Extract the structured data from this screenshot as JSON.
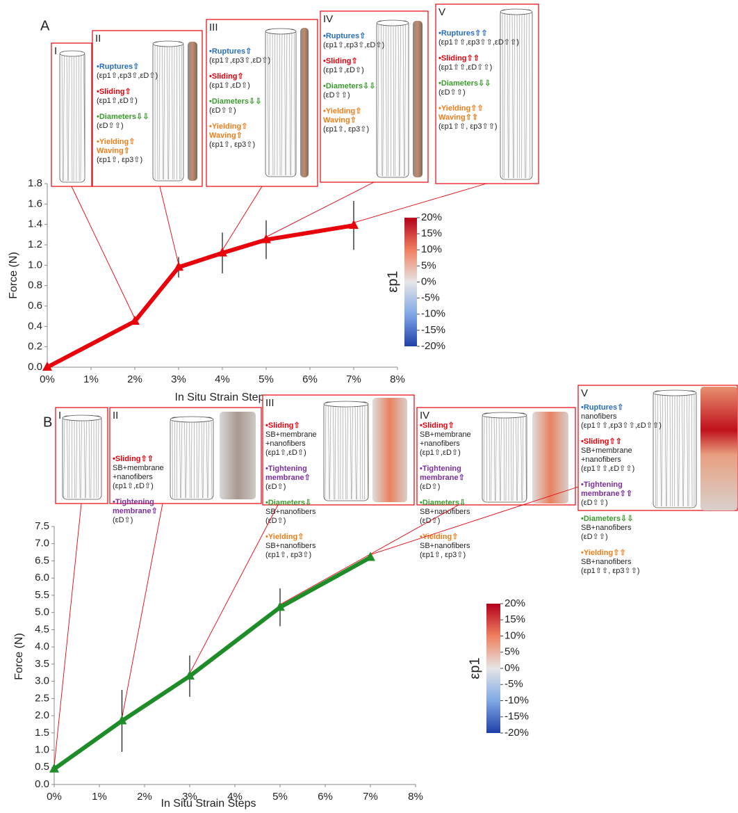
{
  "chart_data": [
    {
      "type": "line",
      "panel_label": "A",
      "xlabel": "In Situ Strain Steps",
      "ylabel": "Force (N)",
      "x": [
        0,
        2,
        3,
        4,
        5,
        7
      ],
      "values": [
        0,
        0.45,
        0.98,
        1.12,
        1.25,
        1.39
      ],
      "errors": [
        null,
        null,
        0.1,
        0.2,
        0.19,
        0.24
      ],
      "color": "#e8000b",
      "marker": "triangle",
      "xlim": [
        0,
        8
      ],
      "ylim": [
        0,
        1.8
      ],
      "xticks": [
        {
          "value": 0,
          "label": "0%"
        },
        {
          "value": 1,
          "label": "1%"
        },
        {
          "value": 2,
          "label": "2%"
        },
        {
          "value": 3,
          "label": "3%"
        },
        {
          "value": 4,
          "label": "4%"
        },
        {
          "value": 5,
          "label": "5%"
        },
        {
          "value": 6,
          "label": "6%"
        },
        {
          "value": 7,
          "label": "7%"
        },
        {
          "value": 8,
          "label": "8%"
        }
      ],
      "yticks": [
        {
          "value": 0,
          "label": "0.0"
        },
        0.2,
        0.4,
        0.6,
        0.8,
        {
          "value": 1,
          "label": "1.0"
        },
        1.2,
        1.4,
        1.6,
        1.8
      ],
      "colorbar": {
        "label": "εp1",
        "ticks": [
          {
            "value": 20,
            "label": "20%"
          },
          {
            "value": 15,
            "label": "15%"
          },
          {
            "value": 10,
            "label": "10%"
          },
          {
            "value": 5,
            "label": "5%"
          },
          {
            "value": 0,
            "label": "0%"
          },
          {
            "value": -5,
            "label": "-5%"
          },
          {
            "value": -10,
            "label": "-10%"
          },
          {
            "value": -15,
            "label": "-15%"
          },
          {
            "value": -20,
            "label": "-20%"
          }
        ]
      },
      "insets": [
        {
          "label": "I",
          "notes": []
        },
        {
          "label": "II",
          "notes": [
            {
              "color": "#2a6ebb",
              "heading": [
                "•Ruptures⇧"
              ],
              "detail": [
                "(εp1⇧,εp3⇧,εD⇧)"
              ]
            },
            {
              "color": "#e8000b",
              "heading": [
                "•Sliding⇧"
              ],
              "detail": [
                "(εp1⇧,εD⇧)"
              ]
            },
            {
              "color": "#3c9a2e",
              "heading": [
                "•Diameters⇩⇩"
              ],
              "detail": [
                "(εD⇧⇧)"
              ]
            },
            {
              "color": "#f07d1a",
              "heading": [
                "•Yielding⇧",
                "Waving⇧"
              ],
              "detail": [
                "(εp1⇧, εp3⇧)"
              ]
            }
          ]
        },
        {
          "label": "III",
          "notes": [
            {
              "color": "#2a6ebb",
              "heading": [
                "•Ruptures⇧"
              ],
              "detail": [
                "(εp1⇧,εp3⇧,εD⇧)"
              ]
            },
            {
              "color": "#e8000b",
              "heading": [
                "•Sliding⇧"
              ],
              "detail": [
                "(εp1⇧,εD⇧)"
              ]
            },
            {
              "color": "#3c9a2e",
              "heading": [
                "•Diameters⇩⇩"
              ],
              "detail": [
                "(εD⇧⇧)"
              ]
            },
            {
              "color": "#f07d1a",
              "heading": [
                "•Yielding⇧",
                "Waving⇧"
              ],
              "detail": [
                "(εp1⇧, εp3⇧)"
              ]
            }
          ]
        },
        {
          "label": "IV",
          "notes": [
            {
              "color": "#2a6ebb",
              "heading": [
                "•Ruptures⇧"
              ],
              "detail": [
                "(εp1⇧,εp3⇧,εD⇧)"
              ]
            },
            {
              "color": "#e8000b",
              "heading": [
                "•Sliding⇧"
              ],
              "detail": [
                "(εp1⇧,εD⇧)"
              ]
            },
            {
              "color": "#3c9a2e",
              "heading": [
                "•Diameters⇩⇩"
              ],
              "detail": [
                "(εD⇧⇧)"
              ]
            },
            {
              "color": "#f07d1a",
              "heading": [
                "•Yielding⇧",
                "Waving⇧"
              ],
              "detail": [
                "(εp1⇧, εp3⇧)"
              ]
            }
          ]
        },
        {
          "label": "V",
          "notes": [
            {
              "color": "#2a6ebb",
              "heading": [
                "•Ruptures⇧⇧"
              ],
              "detail": [
                "(εp1⇧⇧,εp3⇧⇧,εD⇧⇧)"
              ]
            },
            {
              "color": "#e8000b",
              "heading": [
                "•Sliding⇧⇧"
              ],
              "detail": [
                "(εp1⇧⇧,εD⇧⇧)"
              ]
            },
            {
              "color": "#3c9a2e",
              "heading": [
                "•Diameters⇩⇩"
              ],
              "detail": [
                "(εD⇧⇧)"
              ]
            },
            {
              "color": "#f07d1a",
              "heading": [
                "•Yielding⇧⇧",
                "Waving⇧⇧"
              ],
              "detail": [
                "(εp1⇧⇧, εp3⇧⇧)"
              ]
            }
          ]
        }
      ]
    },
    {
      "type": "line",
      "panel_label": "B",
      "xlabel": "In Situ Strain Steps",
      "ylabel": "Force (N)",
      "x": [
        0,
        1.5,
        3,
        5,
        7
      ],
      "values": [
        0.45,
        1.85,
        3.15,
        5.15,
        6.6
      ],
      "errors": [
        null,
        0.9,
        0.6,
        0.55,
        null
      ],
      "color": "#1e8c28",
      "marker": "triangle",
      "xlim": [
        0,
        8
      ],
      "ylim": [
        0,
        7.5
      ],
      "xticks": [
        {
          "value": 0,
          "label": "0%"
        },
        {
          "value": 1,
          "label": "1%"
        },
        {
          "value": 2,
          "label": "2%"
        },
        {
          "value": 3,
          "label": "3%"
        },
        {
          "value": 4,
          "label": "4%"
        },
        {
          "value": 5,
          "label": "5%"
        },
        {
          "value": 6,
          "label": "6%"
        },
        {
          "value": 7,
          "label": "7%"
        },
        {
          "value": 8,
          "label": "8%"
        }
      ],
      "yticks": [
        {
          "value": 0,
          "label": "0.0"
        },
        0.5,
        {
          "value": 1,
          "label": "1.0"
        },
        1.5,
        {
          "value": 2,
          "label": "2.0"
        },
        2.5,
        {
          "value": 3,
          "label": "3.0"
        },
        3.5,
        {
          "value": 4,
          "label": "4.0"
        },
        4.5,
        {
          "value": 5,
          "label": "5.0"
        },
        5.5,
        {
          "value": 6,
          "label": "6.0"
        },
        6.5,
        {
          "value": 7,
          "label": "7.0"
        },
        7.5
      ],
      "colorbar": {
        "label": "εp1",
        "ticks": [
          {
            "value": 20,
            "label": "20%"
          },
          {
            "value": 15,
            "label": "15%"
          },
          {
            "value": 10,
            "label": "10%"
          },
          {
            "value": 5,
            "label": "5%"
          },
          {
            "value": 0,
            "label": "0%"
          },
          {
            "value": -5,
            "label": "-5%"
          },
          {
            "value": -10,
            "label": "-10%"
          },
          {
            "value": -15,
            "label": "-15%"
          },
          {
            "value": -20,
            "label": "-20%"
          }
        ]
      },
      "insets": [
        {
          "label": "I",
          "notes": []
        },
        {
          "label": "II",
          "notes": [
            {
              "color": "#e8000b",
              "heading": [
                "•Sliding⇧⇧"
              ],
              "detail": [
                "SB+membrane",
                "+nanofibers",
                "(εp1⇧,εD⇧)"
              ]
            },
            {
              "color": "#7b2fa0",
              "heading": [
                "•Tightening",
                "membrane⇧"
              ],
              "detail": [
                "(εD⇧)"
              ]
            }
          ]
        },
        {
          "label": "III",
          "notes": [
            {
              "color": "#e8000b",
              "heading": [
                "•Sliding⇧"
              ],
              "detail": [
                "SB+membrane",
                "+nanofibers",
                "(εp1⇧,εD⇧)"
              ]
            },
            {
              "color": "#7b2fa0",
              "heading": [
                "•Tightening",
                "membrane⇧"
              ],
              "detail": [
                "(εD⇧)"
              ]
            },
            {
              "color": "#3c9a2e",
              "heading": [
                "•Diameters⇩"
              ],
              "detail": [
                "SB+nanofibers",
                "(εD⇧)"
              ]
            },
            {
              "color": "#f07d1a",
              "heading": [
                "•Yielding⇧"
              ],
              "detail": [
                "SB+nanofibers",
                "(εp1⇧, εp3⇧)"
              ]
            }
          ]
        },
        {
          "label": "IV",
          "notes": [
            {
              "color": "#e8000b",
              "heading": [
                "•Sliding⇧"
              ],
              "detail": [
                "SB+membrane",
                "+nanofibers",
                "(εp1⇧,εD⇧)"
              ]
            },
            {
              "color": "#7b2fa0",
              "heading": [
                "•Tightening",
                "membrane⇧"
              ],
              "detail": [
                "(εD⇧)"
              ]
            },
            {
              "color": "#3c9a2e",
              "heading": [
                "•Diameters⇩"
              ],
              "detail": [
                "SB+nanofibers",
                "(εD⇧)"
              ]
            },
            {
              "color": "#f07d1a",
              "heading": [
                "•Yielding⇧"
              ],
              "detail": [
                "SB+nanofibers",
                "(εp1⇧, εp3⇧)"
              ]
            }
          ]
        },
        {
          "label": "V",
          "notes": [
            {
              "color": "#2a6ebb",
              "heading": [
                "•Ruptures⇧"
              ],
              "detail": [
                "nanofibers",
                "(εp1⇧⇧,εp3⇧⇧,εD⇧⇧)"
              ]
            },
            {
              "color": "#e8000b",
              "heading": [
                "•Sliding⇧⇧"
              ],
              "detail": [
                "SB+membrane",
                "+nanofibers",
                "(εp1⇧⇧,εD⇧⇧)"
              ]
            },
            {
              "color": "#7b2fa0",
              "heading": [
                "•Tightening",
                "membrane⇧⇧"
              ],
              "detail": [
                "(εD⇧⇧)"
              ]
            },
            {
              "color": "#3c9a2e",
              "heading": [
                "•Diameters⇩⇩"
              ],
              "detail": [
                "SB+nanofibers",
                "(εD⇧⇧)"
              ]
            },
            {
              "color": "#f07d1a",
              "heading": [
                "•Yielding⇧⇧"
              ],
              "detail": [
                "SB+nanofibers",
                "(εp1⇧⇧, εp3⇧⇧)"
              ]
            }
          ]
        }
      ]
    }
  ]
}
